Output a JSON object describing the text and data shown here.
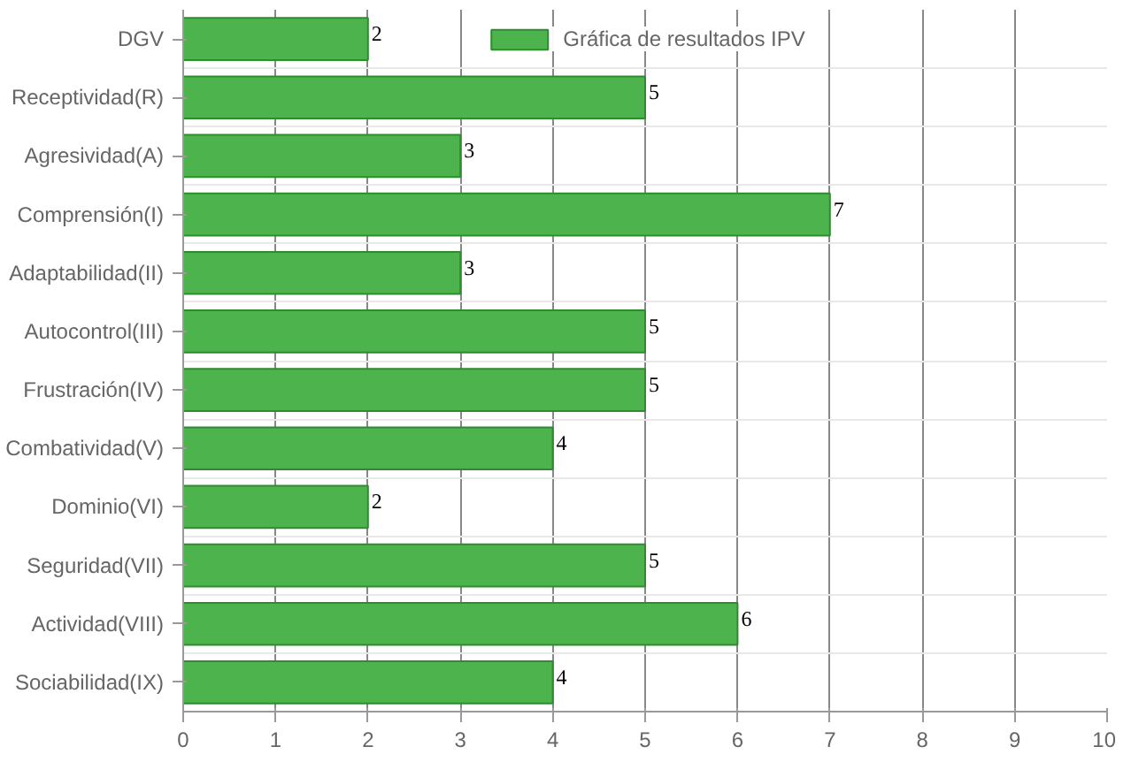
{
  "chart_data": {
    "type": "bar",
    "orientation": "horizontal",
    "categories": [
      "DGV",
      "Receptividad(R)",
      "Agresividad(A)",
      "Comprensión(I)",
      "Adaptabilidad(II)",
      "Autocontrol(III)",
      "Frustración(IV)",
      "Combatividad(V)",
      "Dominio(VI)",
      "Seguridad(VII)",
      "Actividad(VIII)",
      "Sociabilidad(IX)"
    ],
    "series": [
      {
        "name": "Gráfica de resultados IPV",
        "color": "#4db34d",
        "values": [
          2,
          5,
          3,
          7,
          3,
          5,
          5,
          4,
          2,
          5,
          6,
          4
        ]
      }
    ],
    "xlim": [
      0,
      10
    ],
    "xticks": [
      0,
      1,
      2,
      3,
      4,
      5,
      6,
      7,
      8,
      9,
      10
    ],
    "grid": "x",
    "legend": "top",
    "data_labels": true
  }
}
